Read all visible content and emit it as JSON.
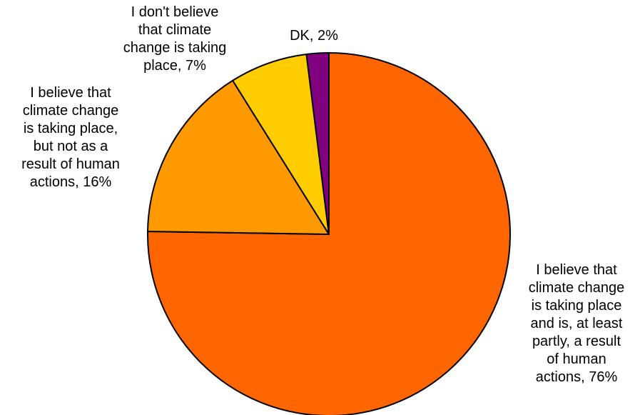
{
  "chart_data": {
    "type": "pie",
    "title": "",
    "start_angle_deg": 0,
    "direction": "clockwise",
    "slices": [
      {
        "label": "I believe that climate change is taking place and is, at least partly, a result of human actions",
        "value": 76,
        "display": "I believe that\nclimate change\nis taking place\nand is, at least\npartly, a result\nof human\nactions, 76%",
        "color": "#FF6600"
      },
      {
        "label": "I believe that climate change is taking place, but not as a result of human actions",
        "value": 16,
        "display": "I believe that\nclimate change\nis taking place,\nbut not as a\nresult of human\nactions, 16%",
        "color": "#FF9900"
      },
      {
        "label": "I don't believe that climate change is taking place",
        "value": 7,
        "display": "I don't believe\nthat climate\nchange is taking\nplace, 7%",
        "color": "#FFCC00"
      },
      {
        "label": "DK",
        "value": 2,
        "display": "DK, 2%",
        "color": "#800080"
      }
    ]
  }
}
